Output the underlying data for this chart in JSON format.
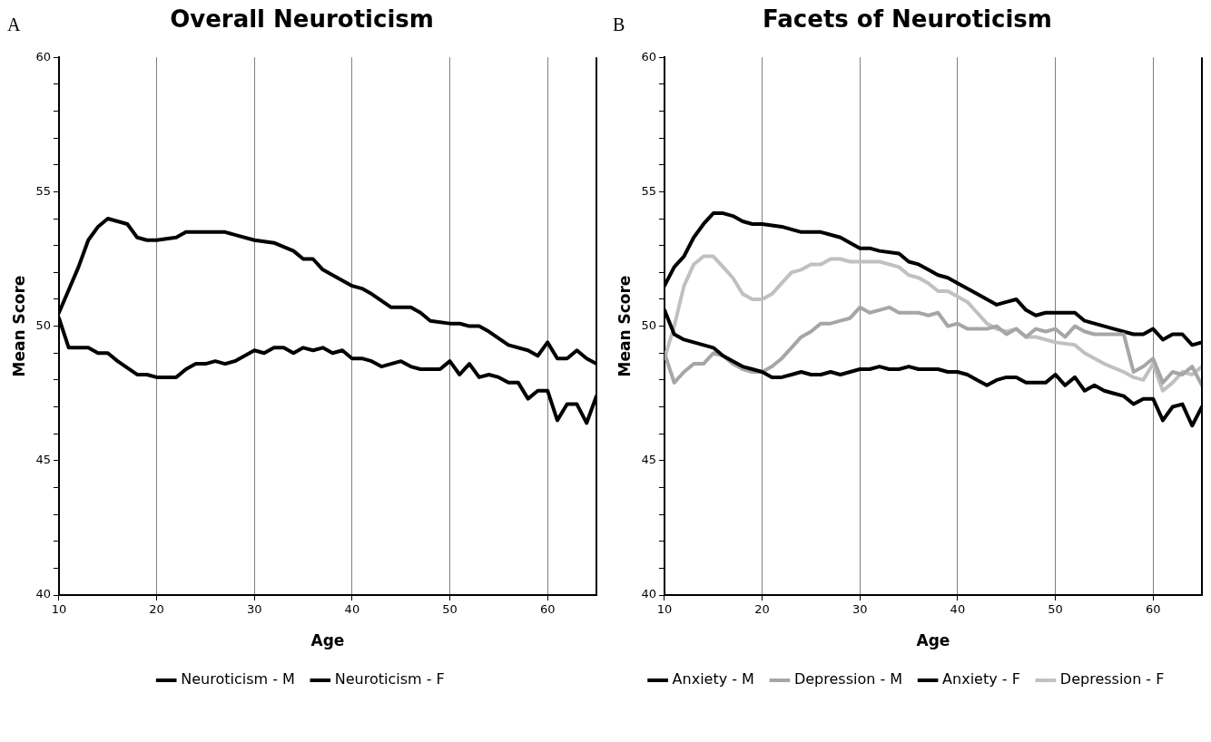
{
  "chart_data": [
    {
      "type": "line",
      "title": "Overall Neuroticism",
      "xlabel": "Age",
      "ylabel": "Mean Score",
      "annotations": [
        "A"
      ],
      "grid": "x",
      "legend": "bottom",
      "marker": "none",
      "xlim": [
        10,
        65
      ],
      "xticks": [
        10,
        20,
        30,
        40,
        50,
        60
      ],
      "ylim": [
        40,
        60
      ],
      "yticks": [
        40,
        {
          "value": 41,
          "label": null
        },
        {
          "value": 42,
          "label": null
        },
        {
          "value": 43,
          "label": null
        },
        {
          "value": 44,
          "label": null
        },
        45,
        {
          "value": 46,
          "label": null
        },
        {
          "value": 47,
          "label": null
        },
        {
          "value": 48,
          "label": null
        },
        {
          "value": 49,
          "label": null
        },
        50,
        {
          "value": 51,
          "label": null
        },
        {
          "value": 52,
          "label": null
        },
        {
          "value": 53,
          "label": null
        },
        {
          "value": 54,
          "label": null
        },
        55,
        {
          "value": 56,
          "label": null
        },
        {
          "value": 57,
          "label": null
        },
        {
          "value": 58,
          "label": null
        },
        {
          "value": 59,
          "label": null
        },
        60
      ],
      "series": [
        {
          "name": "Neuroticism - M",
          "color": "#000000",
          "line_style": "solid",
          "x": [
            10,
            11,
            12,
            13,
            14,
            15,
            16,
            18,
            19,
            20,
            21,
            22,
            23,
            24,
            25,
            26,
            27,
            28,
            29,
            30,
            31,
            32,
            33,
            34,
            35,
            36,
            37,
            38,
            39,
            40,
            41,
            42,
            43,
            44,
            45,
            46,
            47,
            48,
            49,
            50,
            51,
            52,
            53,
            54,
            55,
            56,
            57,
            58,
            59,
            60,
            61,
            62,
            63,
            64,
            65
          ],
          "values": [
            50.3,
            49.2,
            49.2,
            49.2,
            49.0,
            49.0,
            48.7,
            48.2,
            48.2,
            48.1,
            48.1,
            48.1,
            48.4,
            48.6,
            48.6,
            48.7,
            48.6,
            48.7,
            48.9,
            49.1,
            49.0,
            49.2,
            49.2,
            49.0,
            49.2,
            49.1,
            49.2,
            49.0,
            49.1,
            48.8,
            48.8,
            48.7,
            48.5,
            48.6,
            48.7,
            48.5,
            48.4,
            48.4,
            48.4,
            48.7,
            48.2,
            48.6,
            48.1,
            48.2,
            48.1,
            47.9,
            47.9,
            47.3,
            47.6,
            47.6,
            46.5,
            47.1,
            47.1,
            46.4,
            47.4
          ]
        },
        {
          "name": "Neuroticism - F",
          "color": "#000000",
          "line_style": "solid",
          "x": [
            10,
            12,
            13,
            14,
            15,
            16,
            17,
            18,
            19,
            20,
            22,
            23,
            25,
            27,
            28,
            30,
            32,
            34,
            35,
            36,
            37,
            38,
            40,
            41,
            42,
            44,
            46,
            47,
            48,
            50,
            51,
            52,
            53,
            54,
            56,
            58,
            59,
            60,
            61,
            62,
            63,
            64,
            65
          ],
          "values": [
            50.5,
            52.2,
            53.2,
            53.7,
            54.0,
            53.9,
            53.8,
            53.3,
            53.2,
            53.2,
            53.3,
            53.5,
            53.5,
            53.5,
            53.4,
            53.2,
            53.1,
            52.8,
            52.5,
            52.5,
            52.1,
            51.9,
            51.5,
            51.4,
            51.2,
            50.7,
            50.7,
            50.5,
            50.2,
            50.1,
            50.1,
            50.0,
            50.0,
            49.8,
            49.3,
            49.1,
            48.9,
            49.4,
            48.8,
            48.8,
            49.1,
            48.8,
            48.6
          ]
        }
      ]
    },
    {
      "type": "line",
      "title": "Facets of Neuroticism",
      "xlabel": "Age",
      "ylabel": "Mean Score",
      "annotations": [
        "B"
      ],
      "grid": "x",
      "legend": "bottom",
      "marker": "none",
      "xlim": [
        10,
        65
      ],
      "xticks": [
        10,
        20,
        30,
        40,
        50,
        60
      ],
      "ylim": [
        40,
        60
      ],
      "yticks": [
        40,
        {
          "value": 41,
          "label": null
        },
        {
          "value": 42,
          "label": null
        },
        {
          "value": 43,
          "label": null
        },
        {
          "value": 44,
          "label": null
        },
        45,
        {
          "value": 46,
          "label": null
        },
        {
          "value": 47,
          "label": null
        },
        {
          "value": 48,
          "label": null
        },
        {
          "value": 49,
          "label": null
        },
        50,
        {
          "value": 51,
          "label": null
        },
        {
          "value": 52,
          "label": null
        },
        {
          "value": 53,
          "label": null
        },
        {
          "value": 54,
          "label": null
        },
        55,
        {
          "value": 56,
          "label": null
        },
        {
          "value": 57,
          "label": null
        },
        {
          "value": 58,
          "label": null
        },
        {
          "value": 59,
          "label": null
        },
        60
      ],
      "series": [
        {
          "name": "Anxiety - M",
          "color": "#000000",
          "line_style": "solid",
          "x": [
            10,
            11,
            12,
            13,
            14,
            15,
            16,
            17,
            18,
            19,
            20,
            21,
            22,
            23,
            24,
            25,
            26,
            27,
            28,
            29,
            30,
            31,
            32,
            33,
            34,
            35,
            36,
            37,
            38,
            39,
            40,
            41,
            42,
            43,
            44,
            45,
            46,
            47,
            48,
            49,
            50,
            51,
            52,
            53,
            54,
            55,
            56,
            57,
            58,
            59,
            60,
            61,
            62,
            63,
            64,
            65
          ],
          "values": [
            50.6,
            49.7,
            49.5,
            49.4,
            49.3,
            49.2,
            48.9,
            48.7,
            48.5,
            48.4,
            48.3,
            48.1,
            48.1,
            48.2,
            48.3,
            48.2,
            48.2,
            48.3,
            48.2,
            48.3,
            48.4,
            48.4,
            48.5,
            48.4,
            48.4,
            48.5,
            48.4,
            48.4,
            48.4,
            48.3,
            48.3,
            48.2,
            48.0,
            47.8,
            48.0,
            48.1,
            48.1,
            47.9,
            47.9,
            47.9,
            48.2,
            47.8,
            48.1,
            47.6,
            47.8,
            47.6,
            47.5,
            47.4,
            47.1,
            47.3,
            47.3,
            46.5,
            47.0,
            47.1,
            46.3,
            47.0
          ]
        },
        {
          "name": "Depression - M",
          "color": "#a6a6a6",
          "line_style": "solid",
          "x": [
            10,
            11,
            12,
            13,
            14,
            15,
            16,
            17,
            18,
            19,
            20,
            21,
            22,
            23,
            24,
            25,
            26,
            27,
            28,
            29,
            30,
            31,
            32,
            33,
            34,
            35,
            36,
            37,
            38,
            39,
            40,
            41,
            42,
            43,
            44,
            45,
            46,
            47,
            48,
            49,
            50,
            51,
            52,
            53,
            54,
            55,
            56,
            57,
            58,
            59,
            60,
            61,
            62,
            63,
            64,
            65
          ],
          "values": [
            49.0,
            47.9,
            48.3,
            48.6,
            48.6,
            49.0,
            48.9,
            48.6,
            48.4,
            48.3,
            48.3,
            48.5,
            48.8,
            49.2,
            49.6,
            49.8,
            50.1,
            50.1,
            50.2,
            50.3,
            50.7,
            50.5,
            50.6,
            50.7,
            50.5,
            50.5,
            50.5,
            50.4,
            50.5,
            50.0,
            50.1,
            49.9,
            49.9,
            49.9,
            50.0,
            49.7,
            49.9,
            49.6,
            49.9,
            49.8,
            49.9,
            49.6,
            50.0,
            49.8,
            49.7,
            49.7,
            49.7,
            49.7,
            48.3,
            48.5,
            48.8,
            47.9,
            48.3,
            48.2,
            48.5,
            47.8
          ]
        },
        {
          "name": "Anxiety - F",
          "color": "#000000",
          "line_style": "solid",
          "x": [
            10,
            11,
            12,
            13,
            14,
            15,
            16,
            17,
            18,
            19,
            20,
            22,
            24,
            26,
            28,
            29,
            30,
            31,
            32,
            34,
            35,
            36,
            37,
            38,
            39,
            40,
            42,
            43,
            44,
            45,
            46,
            47,
            48,
            49,
            50,
            52,
            53,
            55,
            56,
            58,
            59,
            60,
            61,
            62,
            63,
            64,
            65
          ],
          "values": [
            51.5,
            52.2,
            52.6,
            53.3,
            53.8,
            54.2,
            54.2,
            54.1,
            53.9,
            53.8,
            53.8,
            53.7,
            53.5,
            53.5,
            53.3,
            53.1,
            52.9,
            52.9,
            52.8,
            52.7,
            52.4,
            52.3,
            52.1,
            51.9,
            51.8,
            51.6,
            51.2,
            51.0,
            50.8,
            50.9,
            51.0,
            50.6,
            50.4,
            50.5,
            50.5,
            50.5,
            50.2,
            50.0,
            49.9,
            49.7,
            49.7,
            49.9,
            49.5,
            49.7,
            49.7,
            49.3,
            49.4
          ]
        },
        {
          "name": "Depression - F",
          "color": "#c0c0c0",
          "line_style": "solid",
          "x": [
            10,
            11,
            12,
            13,
            14,
            15,
            16,
            17,
            18,
            19,
            20,
            21,
            22,
            23,
            24,
            25,
            26,
            27,
            28,
            29,
            30,
            32,
            33,
            34,
            35,
            36,
            37,
            38,
            39,
            40,
            41,
            42,
            43,
            44,
            45,
            46,
            47,
            48,
            49,
            50,
            52,
            53,
            55,
            57,
            58,
            59,
            60,
            61,
            62,
            63,
            64,
            65
          ],
          "values": [
            48.8,
            50.0,
            51.5,
            52.3,
            52.6,
            52.6,
            52.2,
            51.8,
            51.2,
            51.0,
            51.0,
            51.2,
            51.6,
            52.0,
            52.1,
            52.3,
            52.3,
            52.5,
            52.5,
            52.4,
            52.4,
            52.4,
            52.3,
            52.2,
            51.9,
            51.8,
            51.6,
            51.3,
            51.3,
            51.1,
            50.9,
            50.5,
            50.1,
            49.9,
            49.8,
            49.9,
            49.6,
            49.6,
            49.5,
            49.4,
            49.3,
            49.0,
            48.6,
            48.3,
            48.1,
            48.0,
            48.6,
            47.6,
            47.9,
            48.3,
            48.2,
            48.5
          ]
        }
      ]
    }
  ]
}
